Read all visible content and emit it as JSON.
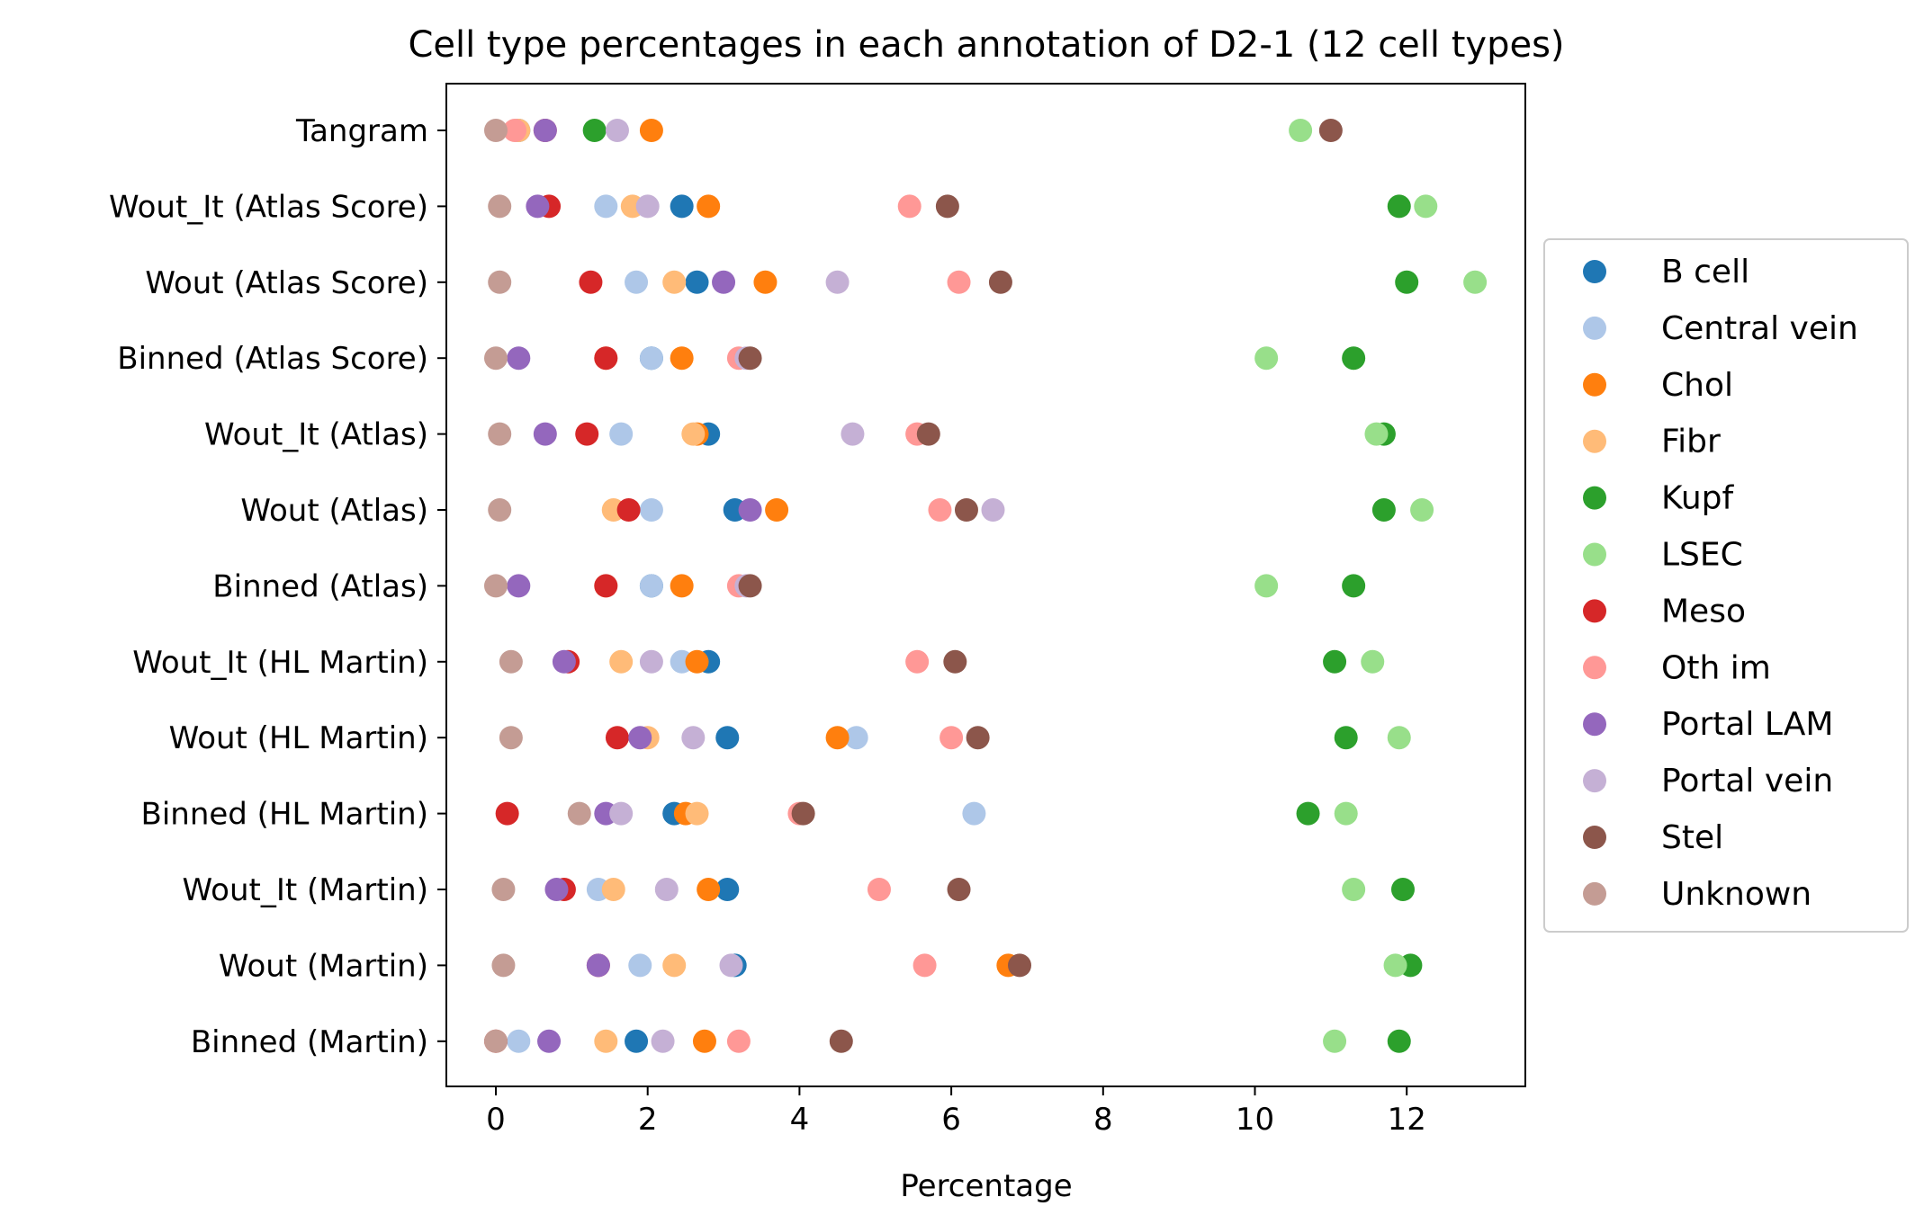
{
  "chart_data": {
    "type": "scatter",
    "title": "Cell type percentages in each annotation of D2-1 (12 cell types)",
    "xlabel": "Percentage",
    "ylabel": "",
    "xlim": [
      -0.6,
      13.6
    ],
    "xticks": [
      0,
      2,
      4,
      6,
      8,
      10,
      12
    ],
    "grid": false,
    "legend_position": "right",
    "categories": [
      "Tangram",
      "Wout_It (Atlas Score)",
      "Wout (Atlas Score)",
      "Binned (Atlas Score)",
      "Wout_It (Atlas)",
      "Wout (Atlas)",
      "Binned (Atlas)",
      "Wout_It (HL Martin)",
      "Wout (HL Martin)",
      "Binned (HL Martin)",
      "Wout_It (Martin)",
      "Wout (Martin)",
      "Binned (Martin)"
    ],
    "series": [
      {
        "name": "B cell",
        "color": "#1f77b4",
        "values": [
          0.3,
          2.45,
          2.65,
          2.05,
          2.8,
          3.15,
          2.05,
          2.8,
          3.05,
          2.35,
          3.05,
          3.15,
          1.85
        ]
      },
      {
        "name": "Central vein",
        "color": "#aec7e8",
        "values": [
          0.3,
          1.45,
          1.85,
          2.05,
          1.65,
          2.05,
          2.05,
          2.45,
          4.75,
          6.3,
          1.35,
          1.9,
          0.3
        ]
      },
      {
        "name": "Chol",
        "color": "#ff7f0e",
        "values": [
          2.05,
          2.8,
          3.55,
          2.45,
          2.65,
          3.7,
          2.45,
          2.65,
          4.5,
          2.5,
          2.8,
          6.75,
          2.75
        ]
      },
      {
        "name": "Fibr",
        "color": "#ffbb78",
        "values": [
          0.3,
          1.8,
          2.35,
          1.45,
          2.6,
          1.55,
          1.45,
          1.65,
          2.0,
          2.65,
          1.55,
          2.35,
          1.45
        ]
      },
      {
        "name": "Kupf",
        "color": "#2ca02c",
        "values": [
          1.3,
          11.9,
          12.0,
          11.3,
          11.7,
          11.7,
          11.3,
          11.05,
          11.2,
          10.7,
          11.95,
          12.05,
          11.9
        ]
      },
      {
        "name": "LSEC",
        "color": "#98df8a",
        "values": [
          10.6,
          12.25,
          12.9,
          10.15,
          11.6,
          12.2,
          10.15,
          11.55,
          11.9,
          11.2,
          11.3,
          11.85,
          11.05
        ]
      },
      {
        "name": "Meso",
        "color": "#d62728",
        "values": [
          0.65,
          0.7,
          1.25,
          1.45,
          1.2,
          1.75,
          1.45,
          0.95,
          1.6,
          0.15,
          0.9,
          1.35,
          0.0
        ]
      },
      {
        "name": "Oth im",
        "color": "#ff9896",
        "values": [
          0.25,
          5.45,
          6.1,
          3.2,
          5.55,
          5.85,
          3.2,
          5.55,
          6.0,
          4.0,
          5.05,
          5.65,
          3.2
        ]
      },
      {
        "name": "Portal LAM",
        "color": "#9467bd",
        "values": [
          0.65,
          0.55,
          3.0,
          0.3,
          0.65,
          3.35,
          0.3,
          0.9,
          1.9,
          1.45,
          0.8,
          1.35,
          0.7
        ]
      },
      {
        "name": "Portal vein",
        "color": "#c5b0d5",
        "values": [
          1.6,
          2.0,
          4.5,
          3.3,
          4.7,
          6.55,
          3.3,
          2.05,
          2.6,
          1.65,
          2.25,
          3.1,
          2.2
        ]
      },
      {
        "name": "Stel",
        "color": "#8c564b",
        "values": [
          11.0,
          5.95,
          6.65,
          3.35,
          5.7,
          6.2,
          3.35,
          6.05,
          6.35,
          4.05,
          6.1,
          6.9,
          4.55
        ]
      },
      {
        "name": "Unknown",
        "color": "#c49c94",
        "values": [
          0.0,
          0.05,
          0.05,
          0.0,
          0.05,
          0.05,
          0.0,
          0.2,
          0.2,
          1.1,
          0.1,
          0.1,
          0.0
        ]
      }
    ]
  }
}
